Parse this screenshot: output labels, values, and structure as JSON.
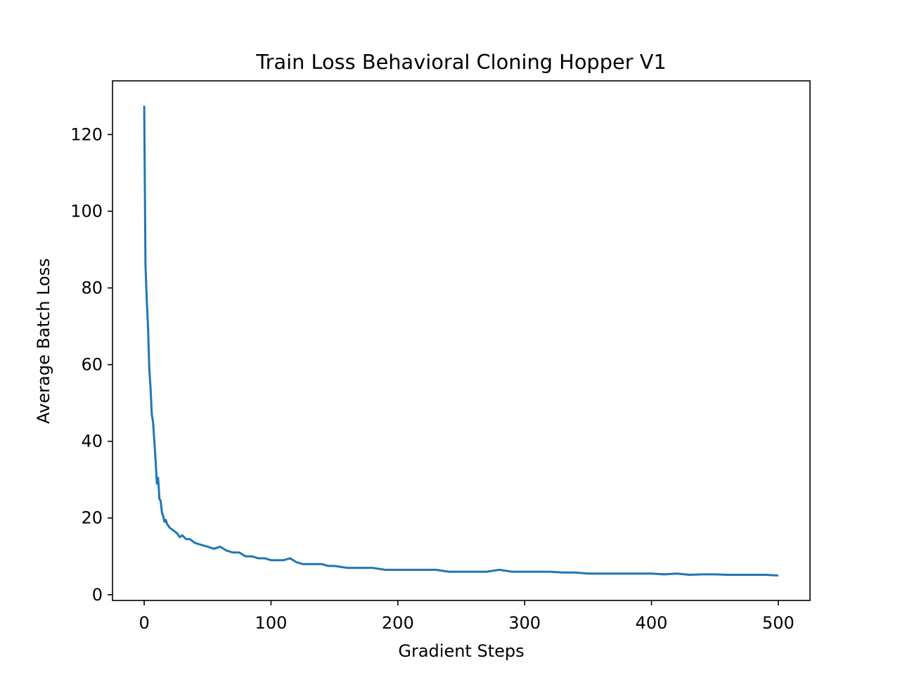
{
  "chart_data": {
    "type": "line",
    "title": "Train Loss Behavioral Cloning Hopper V1",
    "xlabel": "Gradient Steps",
    "ylabel": "Average Batch Loss",
    "xlim": [
      -25,
      525
    ],
    "ylim": [
      -1.5,
      134
    ],
    "xticks": [
      0,
      100,
      200,
      300,
      400,
      500
    ],
    "yticks": [
      0,
      20,
      40,
      60,
      80,
      100,
      120
    ],
    "xtick_labels": [
      "0",
      "100",
      "200",
      "300",
      "400",
      "500"
    ],
    "ytick_labels": [
      "0",
      "20",
      "40",
      "60",
      "80",
      "100",
      "120"
    ],
    "grid": false,
    "legend": "none",
    "series": [
      {
        "color": "#1f77b4",
        "x": [
          0,
          1,
          2,
          3,
          4,
          5,
          6,
          7,
          8,
          9,
          10,
          11,
          12,
          13,
          14,
          15,
          16,
          17,
          18,
          20,
          22,
          24,
          26,
          28,
          30,
          33,
          36,
          40,
          45,
          50,
          55,
          60,
          65,
          70,
          75,
          80,
          85,
          90,
          95,
          100,
          105,
          110,
          115,
          120,
          125,
          130,
          135,
          140,
          145,
          150,
          160,
          170,
          180,
          190,
          200,
          210,
          220,
          230,
          240,
          250,
          260,
          270,
          280,
          290,
          300,
          310,
          320,
          330,
          340,
          350,
          360,
          370,
          380,
          390,
          400,
          410,
          420,
          430,
          440,
          450,
          460,
          470,
          480,
          490,
          500
        ],
        "y": [
          127.5,
          86,
          77,
          70,
          59,
          54,
          47,
          45,
          40,
          35,
          29,
          30.5,
          25,
          24.5,
          21.5,
          20.5,
          19,
          19.5,
          18.5,
          17.5,
          17,
          16.5,
          16,
          15,
          15.5,
          14.5,
          14.5,
          13.5,
          13,
          12.5,
          12,
          12.5,
          11.5,
          11,
          11,
          10,
          10,
          9.5,
          9.5,
          9,
          9,
          9,
          9.5,
          8.5,
          8,
          8,
          8,
          8,
          7.5,
          7.5,
          7,
          7,
          7,
          6.5,
          6.5,
          6.5,
          6.5,
          6.5,
          6,
          6,
          6,
          6,
          6.5,
          6,
          6,
          6,
          6,
          5.8,
          5.8,
          5.5,
          5.5,
          5.5,
          5.5,
          5.5,
          5.5,
          5.3,
          5.5,
          5.2,
          5.3,
          5.3,
          5.2,
          5.2,
          5.2,
          5.2,
          5
        ]
      }
    ]
  }
}
